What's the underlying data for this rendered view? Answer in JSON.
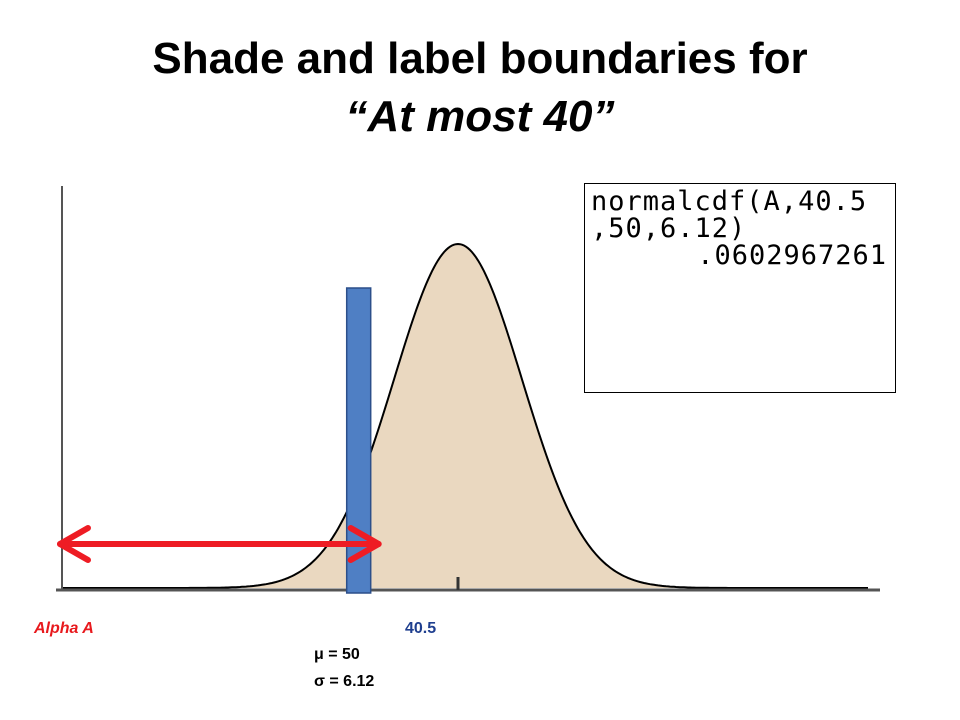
{
  "title": {
    "line1": "Shade and label boundaries for",
    "line2": "“At most 40”"
  },
  "calculator": {
    "line1": "normalcdf(A,40.5",
    "line2": ",50,6.12)",
    "result": ".0602967261"
  },
  "labels": {
    "alpha": "Alpha A",
    "boundary": "40.5",
    "mean": "μ = 50",
    "sd": "σ = 6.12"
  },
  "colors": {
    "curve_fill": "#ead8c0",
    "curve_stroke": "#000000",
    "boundary_bar": "#4f7fc4",
    "boundary_bar_stroke": "#2c4f8a",
    "arrow": "#ee1c24"
  },
  "distribution": {
    "mean": 50,
    "sd": 6.12,
    "boundary": 40.5
  }
}
